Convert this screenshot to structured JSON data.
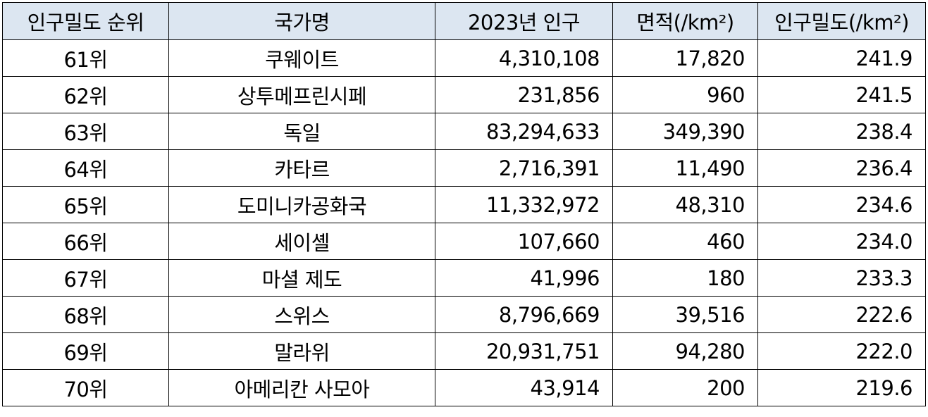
{
  "colors": {
    "header_bg": "#dce6f1",
    "border": "#000000",
    "text": "#000000"
  },
  "table": {
    "headers": [
      "인구밀도 순위",
      "국가명",
      "2023년 인구",
      "면적(/km²)",
      "인구밀도(/km²)"
    ],
    "rows": [
      [
        "61위",
        "쿠웨이트",
        "4,310,108",
        "17,820",
        "241.9"
      ],
      [
        "62위",
        "상투메프린시페",
        "231,856",
        "960",
        "241.5"
      ],
      [
        "63위",
        "독일",
        "83,294,633",
        "349,390",
        "238.4"
      ],
      [
        "64위",
        "카타르",
        "2,716,391",
        "11,490",
        "236.4"
      ],
      [
        "65위",
        "도미니카공화국",
        "11,332,972",
        "48,310",
        "234.6"
      ],
      [
        "66위",
        "세이셸",
        "107,660",
        "460",
        "234.0"
      ],
      [
        "67위",
        "마셜 제도",
        "41,996",
        "180",
        "233.3"
      ],
      [
        "68위",
        "스위스",
        "8,796,669",
        "39,516",
        "222.6"
      ],
      [
        "69위",
        "말라위",
        "20,931,751",
        "94,280",
        "222.0"
      ],
      [
        "70위",
        "아메리칸 사모아",
        "43,914",
        "200",
        "219.6"
      ]
    ]
  }
}
